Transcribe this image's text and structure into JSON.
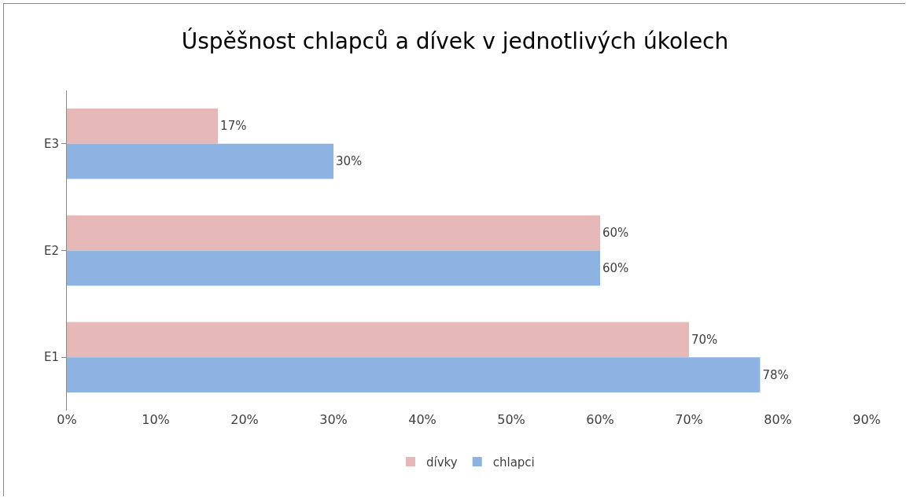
{
  "chart_data": {
    "type": "bar",
    "orientation": "horizontal",
    "title": "Úspěšnost chlapců a dívek v jednotlivých úkolech",
    "categories": [
      "E3",
      "E2",
      "E1"
    ],
    "series": [
      {
        "name": "dívky",
        "color": "#e6b9b8",
        "values": [
          17,
          60,
          70
        ],
        "value_labels": [
          "17%",
          "60%",
          "70%"
        ]
      },
      {
        "name": "chlapci",
        "color": "#8db3e2",
        "values": [
          30,
          60,
          78
        ],
        "value_labels": [
          "30%",
          "60%",
          "78%"
        ]
      }
    ],
    "xlim": [
      0,
      90
    ],
    "xticks": [
      {
        "value": 0,
        "label": "0%"
      },
      {
        "value": 10,
        "label": "10%"
      },
      {
        "value": 20,
        "label": "20%"
      },
      {
        "value": 30,
        "label": "30%"
      },
      {
        "value": 40,
        "label": "40%"
      },
      {
        "value": 50,
        "label": "50%"
      },
      {
        "value": 60,
        "label": "60%"
      },
      {
        "value": 70,
        "label": "70%"
      },
      {
        "value": 80,
        "label": "80%"
      },
      {
        "value": 90,
        "label": "90%"
      }
    ],
    "grid": false,
    "legend": "bottom"
  }
}
